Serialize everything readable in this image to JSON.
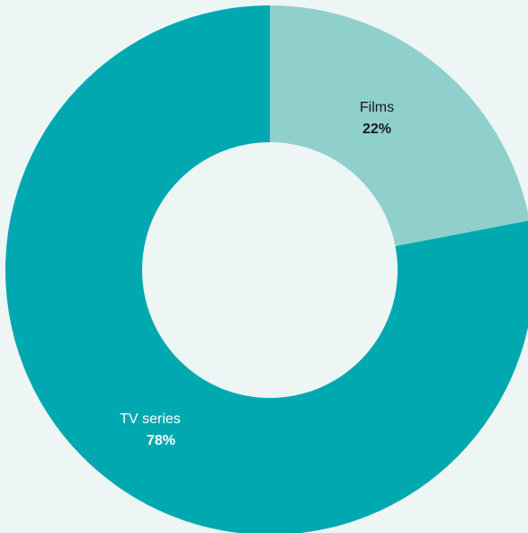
{
  "chart_data": {
    "type": "pie",
    "donut": true,
    "slices": [
      {
        "label": "Films",
        "value": 22,
        "value_label": "22%",
        "color": "#8fd0cd",
        "label_color": "#1a1a1a"
      },
      {
        "label": "TV series",
        "value": 78,
        "value_label": "78%",
        "color": "#00a9b0",
        "label_color": "#ffffff"
      }
    ],
    "background_color": "#eef6f5"
  }
}
